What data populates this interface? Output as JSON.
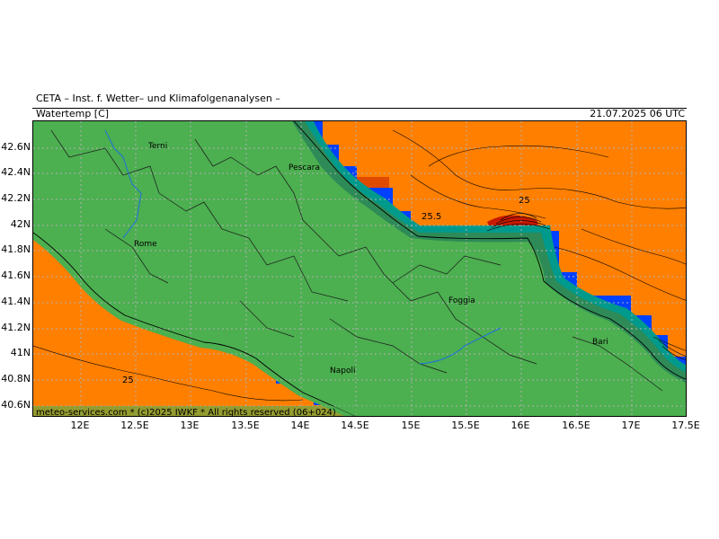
{
  "header": {
    "institute": "CETA – Inst. f. Wetter– und Klimafolgenanalysen –",
    "parameter": "Watertemp [C]",
    "datetime": "21.07.2025 06 UTC"
  },
  "footer": {
    "credit": "meteo-services.com * (c)2025 IWKF * All rights reserved (06+024)"
  },
  "axes": {
    "lat_labels": [
      "42.6N",
      "42.4N",
      "42.2N",
      "42N",
      "41.8N",
      "41.6N",
      "41.4N",
      "41.2N",
      "41N",
      "40.8N",
      "40.6N"
    ],
    "lon_labels": [
      "12E",
      "12.5E",
      "13E",
      "13.5E",
      "14E",
      "14.5E",
      "15E",
      "15.5E",
      "16E",
      "16.5E",
      "17E",
      "17.5E"
    ]
  },
  "cities": [
    {
      "name": "Terni",
      "lon": 12.64,
      "lat": 42.56
    },
    {
      "name": "Pescara",
      "lon": 14.21,
      "lat": 42.46
    },
    {
      "name": "Rome",
      "lon": 12.5,
      "lat": 41.9
    },
    {
      "name": "Foggia",
      "lon": 15.55,
      "lat": 41.46
    },
    {
      "name": "Bari",
      "lon": 16.87,
      "lat": 41.12
    },
    {
      "name": "Napoli",
      "lon": 14.25,
      "lat": 40.86
    }
  ],
  "contour_labels": [
    {
      "text": "25.5",
      "lon": 15.18,
      "lat": 42.07
    },
    {
      "text": "25",
      "lon": 16.02,
      "lat": 42.19
    },
    {
      "text": "25",
      "lon": 12.44,
      "lat": 40.8
    }
  ],
  "colors": {
    "sea_warm": "#ff7f00",
    "sea_hot": "#d93a00",
    "sea_max": "#b00000",
    "land": "#4caf50",
    "coast_dark_green": "#2e8b57",
    "coast_teal": "#009a8c",
    "coast_blue": "#0040ff",
    "grid": "#b0b0b0",
    "boundary": "#000000",
    "river": "#1e6fe0"
  }
}
